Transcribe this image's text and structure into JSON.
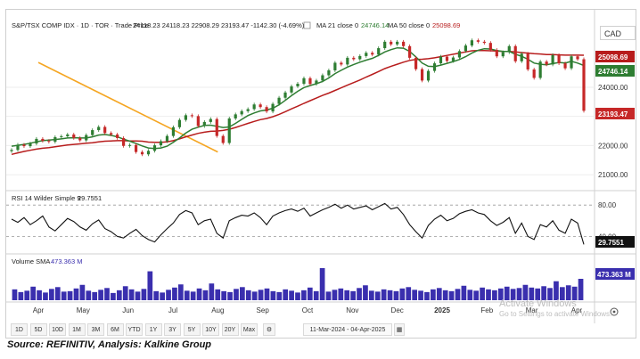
{
  "header": {
    "symbol_line": "S&P/TSX COMP IDX · 1D · TOR · Trade Price",
    "ohlc": "24118.23  24118.23  22908.29  23193.47  -1142.30 (-4.69%)",
    "ma21_label": "MA 21 close 0",
    "ma21_value": "24746.14",
    "ma50_label": "MA 50 close 0",
    "ma50_value": "25098.69"
  },
  "currency": "CAD",
  "rsi_label": "RSI 14 Wilder Simple 9",
  "rsi_value": "29.7551",
  "volume_label": "Volume SMA",
  "volume_value": "473.363 M",
  "toolbar": {
    "buttons": [
      "1D",
      "5D",
      "10D",
      "1M",
      "3M",
      "6M",
      "YTD",
      "1Y",
      "3Y",
      "5Y",
      "10Y",
      "20Y",
      "Max"
    ],
    "date_range": "11-Mar-2024 - 04-Apr-2025"
  },
  "watermark": {
    "line1": "Activate Windows",
    "line2": "Go to Settings to activate Windows."
  },
  "source": "Source: REFINITIV, Analysis: Kalkine Group",
  "colors": {
    "ma21": "#2e7d32",
    "ma50": "#b71c1c",
    "trendline": "#f5a623",
    "volume": "#3a2fae",
    "rsi": "#111111"
  },
  "chart_data": [
    {
      "type": "line",
      "title": "S&P/TSX COMP IDX",
      "x_months": [
        "Apr",
        "May",
        "Jun",
        "Jul",
        "Aug",
        "Sep",
        "Oct",
        "Nov",
        "Dec",
        "2025",
        "Feb",
        "Mar",
        "Apr"
      ],
      "y_ticks": [
        21000,
        22000,
        23000,
        24000
      ],
      "ylim": [
        20700,
        25800
      ],
      "price_series": [
        21850,
        22030,
        21980,
        22070,
        22230,
        22160,
        22130,
        22290,
        22320,
        22380,
        22260,
        22180,
        22360,
        22530,
        22640,
        22430,
        22380,
        22260,
        21990,
        22020,
        21780,
        21700,
        21820,
        22010,
        22150,
        22330,
        22630,
        22880,
        23040,
        23010,
        22670,
        22810,
        22910,
        22330,
        22090,
        22930,
        23070,
        23180,
        23250,
        23410,
        23320,
        23170,
        23430,
        23640,
        23820,
        24030,
        24120,
        24310,
        24110,
        24230,
        24410,
        24580,
        24840,
        24780,
        25010,
        24960,
        25070,
        25180,
        25120,
        25340,
        25560,
        25470,
        25560,
        25410,
        25010,
        24620,
        24230,
        24560,
        24820,
        25050,
        24900,
        25020,
        25240,
        25430,
        25610,
        25560,
        25520,
        25280,
        25060,
        25200,
        25410,
        24890,
        25150,
        24610,
        24320,
        24880,
        24780,
        25100,
        24820,
        24650,
        25060,
        24960,
        23193.47
      ],
      "ma21_series": [
        21980,
        22010,
        22040,
        22080,
        22130,
        22170,
        22190,
        22210,
        22230,
        22260,
        22270,
        22260,
        22260,
        22300,
        22360,
        22380,
        22350,
        22300,
        22220,
        22150,
        22070,
        21990,
        21920,
        21900,
        21920,
        21980,
        22110,
        22260,
        22430,
        22560,
        22630,
        22690,
        22700,
        22660,
        22620,
        22640,
        22760,
        22900,
        23030,
        23120,
        23190,
        23220,
        23280,
        23400,
        23550,
        23710,
        23860,
        23990,
        24060,
        24120,
        24200,
        24320,
        24470,
        24580,
        24690,
        24780,
        24860,
        24930,
        24990,
        25090,
        25210,
        25290,
        25350,
        25340,
        25230,
        25040,
        24830,
        24720,
        24710,
        24760,
        24820,
        24880,
        24950,
        25050,
        25170,
        25270,
        25320,
        25310,
        25260,
        25230,
        25230,
        25130,
        25060,
        24960,
        24830,
        24790,
        24770,
        24810,
        24850,
        24830,
        24890,
        24830,
        24746.14
      ],
      "ma50_series": [
        21700,
        21750,
        21800,
        21840,
        21880,
        21910,
        21930,
        21960,
        21990,
        22020,
        22040,
        22060,
        22080,
        22100,
        22130,
        22150,
        22160,
        22170,
        22170,
        22160,
        22160,
        22150,
        22120,
        22110,
        22110,
        22130,
        22170,
        22230,
        22300,
        22360,
        22420,
        22460,
        22490,
        22500,
        22520,
        22560,
        22620,
        22690,
        22760,
        22830,
        22890,
        22930,
        22990,
        23070,
        23160,
        23260,
        23350,
        23450,
        23540,
        23630,
        23720,
        23800,
        23890,
        23980,
        24070,
        24160,
        24250,
        24350,
        24440,
        24540,
        24640,
        24720,
        24790,
        24860,
        24920,
        24950,
        24960,
        24980,
        25010,
        25050,
        25090,
        25130,
        25170,
        25210,
        25250,
        25260,
        25260,
        25250,
        25240,
        25230,
        25230,
        25210,
        25190,
        25170,
        25150,
        25140,
        25120,
        25120,
        25110,
        25100,
        25100,
        25100,
        25098.69
      ],
      "trendline": {
        "start": {
          "month": "Aug",
          "value": 21780
        },
        "end": {
          "month": "Apr",
          "value": 24850
        }
      },
      "last_price": 23193.47
    },
    {
      "type": "line",
      "title": "RSI 14 Wilder Simple 9",
      "y_ticks": [
        40,
        80
      ],
      "ylim": [
        20,
        95
      ],
      "series": [
        62,
        58,
        64,
        55,
        60,
        66,
        52,
        47,
        55,
        63,
        59,
        52,
        48,
        56,
        61,
        50,
        46,
        40,
        38,
        44,
        49,
        41,
        36,
        33,
        42,
        50,
        57,
        68,
        73,
        70,
        55,
        60,
        62,
        44,
        38,
        60,
        64,
        67,
        66,
        70,
        64,
        55,
        66,
        70,
        73,
        75,
        72,
        76,
        66,
        70,
        74,
        77,
        81,
        76,
        80,
        75,
        77,
        79,
        74,
        78,
        82,
        75,
        77,
        68,
        55,
        46,
        38,
        54,
        62,
        67,
        60,
        63,
        69,
        72,
        74,
        70,
        68,
        60,
        54,
        58,
        64,
        44,
        57,
        40,
        36,
        55,
        52,
        60,
        48,
        44,
        62,
        57,
        29.7551
      ]
    },
    {
      "type": "bar",
      "title": "Volume SMA",
      "values": [
        2.4,
        1.8,
        2.1,
        3.0,
        2.2,
        1.7,
        2.5,
        2.9,
        1.9,
        2.0,
        2.6,
        3.4,
        2.1,
        1.8,
        2.3,
        2.7,
        1.6,
        2.2,
        3.1,
        2.4,
        1.9,
        2.5,
        6.4,
        2.0,
        1.7,
        2.3,
        2.8,
        3.5,
        2.1,
        1.9,
        2.6,
        2.2,
        3.7,
        2.4,
        2.0,
        1.8,
        2.5,
        2.9,
        2.2,
        1.9,
        2.3,
        2.6,
        2.0,
        1.8,
        2.4,
        2.1,
        1.7,
        2.2,
        2.8,
        2.0,
        7.1,
        1.9,
        2.3,
        2.6,
        2.2,
        2.0,
        2.7,
        3.3,
        2.1,
        1.9,
        2.4,
        2.2,
        2.0,
        2.6,
        2.9,
        2.3,
        2.1,
        1.8,
        2.4,
        2.7,
        2.2,
        2.0,
        2.5,
        3.2,
        2.3,
        2.1,
        2.8,
        2.4,
        2.2,
        2.6,
        3.0,
        2.5,
        2.7,
        3.4,
        2.8,
        2.6,
        3.1,
        2.7,
        4.2,
        2.9,
        3.3,
        3.0,
        4.73363
      ]
    }
  ]
}
